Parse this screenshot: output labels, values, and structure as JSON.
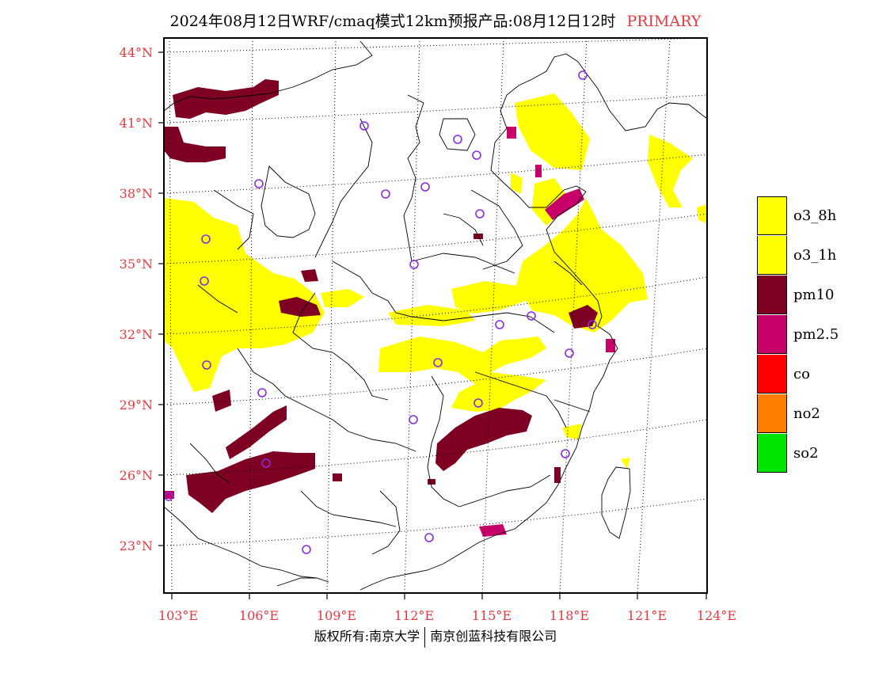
{
  "title": {
    "main": "2024年08月12日WRF/cmaq模式12km预报产品:08月12日12时",
    "tag": "PRIMARY"
  },
  "axes": {
    "lat_labels": [
      "44°N",
      "41°N",
      "38°N",
      "35°N",
      "32°N",
      "29°N",
      "26°N",
      "23°N"
    ],
    "lon_labels": [
      "103°E",
      "106°E",
      "109°E",
      "112°E",
      "115°E",
      "118°E",
      "121°E",
      "124°E"
    ]
  },
  "legend": {
    "items": [
      {
        "label": "o3_8h",
        "color": "#ffff00"
      },
      {
        "label": "o3_1h",
        "color": "#ffff00"
      },
      {
        "label": "pm10",
        "color": "#7e0023"
      },
      {
        "label": "pm2.5",
        "color": "#c8006a"
      },
      {
        "label": "co",
        "color": "#ff0000"
      },
      {
        "label": "no2",
        "color": "#ff7e00"
      },
      {
        "label": "so2",
        "color": "#00e400"
      }
    ]
  },
  "colors": {
    "o3": "#ffff00",
    "pm10": "#7e0023",
    "pm25": "#c8006a",
    "station_marker": "#8a2be2",
    "tick_label": "#e8383d"
  },
  "copyright": {
    "left": "版权所有:南京大学",
    "right": "南京创蓝科技有限公司"
  }
}
